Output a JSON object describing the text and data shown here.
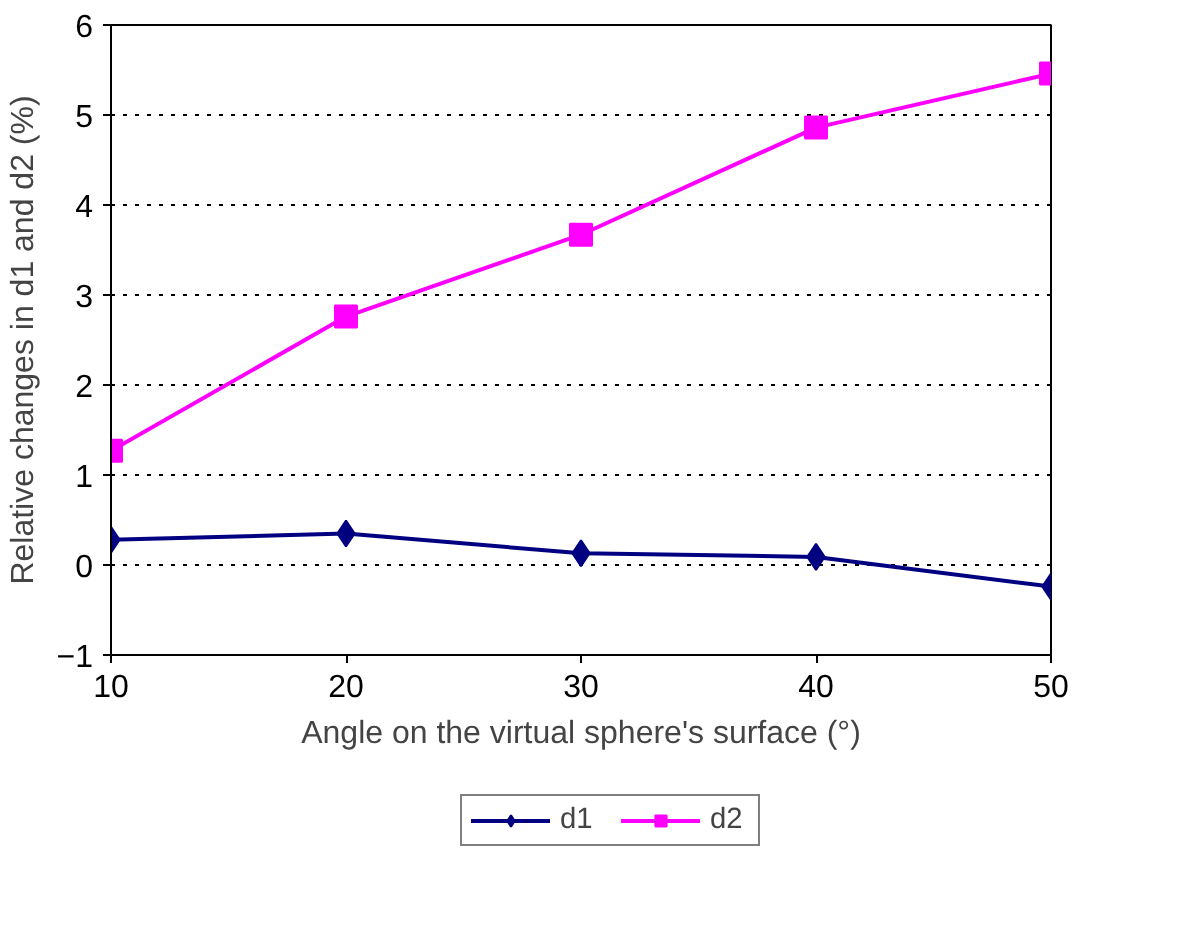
{
  "chart_data": {
    "type": "line",
    "xlabel": "Angle on the virtual sphere's surface (°)",
    "ylabel": "Relative changes in d1 and d2 (%)",
    "x": [
      10,
      20,
      30,
      40,
      50
    ],
    "xlim": [
      10,
      50
    ],
    "xticks": [
      10,
      20,
      30,
      40,
      50
    ],
    "ylim": [
      -1,
      6
    ],
    "yticks": [
      -1,
      0,
      1,
      2,
      3,
      4,
      5,
      6
    ],
    "grid": "y",
    "legend": "bottom",
    "line_style": "solid",
    "series": [
      {
        "name": "d1",
        "color": "#000080",
        "marker": "diamond",
        "values": [
          0.28,
          0.35,
          0.13,
          0.09,
          -0.24
        ]
      },
      {
        "name": "d2",
        "color": "#ff00ff",
        "marker": "square",
        "values": [
          1.27,
          2.76,
          3.67,
          4.86,
          5.46
        ]
      }
    ]
  }
}
